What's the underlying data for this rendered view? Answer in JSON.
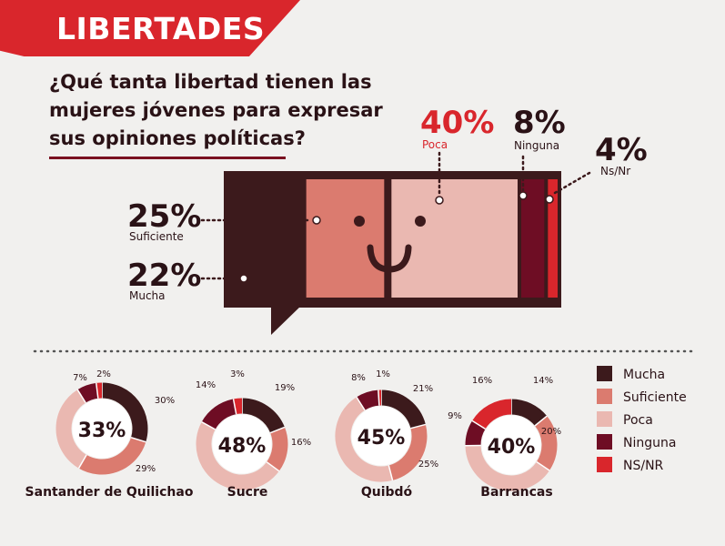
{
  "header": {
    "banner_title": "LIBERTADES"
  },
  "question": {
    "line1": "¿Qué tanta libertad tienen las",
    "line2": "mujeres jóvenes para expresar",
    "line3": "sus opiniones políticas?"
  },
  "colors": {
    "mucha": "#3c1a1c",
    "suficiente": "#db7b6f",
    "poca": "#eab8b1",
    "ninguna": "#6e0d24",
    "nsnr": "#d9262c",
    "banner": "#d9262c"
  },
  "legend": [
    {
      "label": "Mucha",
      "color": "#3c1a1c"
    },
    {
      "label": "Suficiente",
      "color": "#db7b6f"
    },
    {
      "label": "Poca",
      "color": "#eab8b1"
    },
    {
      "label": "Ninguna",
      "color": "#6e0d24"
    },
    {
      "label": "NS/NR",
      "color": "#d9262c"
    }
  ],
  "chart_data": [
    {
      "type": "bar",
      "categories": [
        "Mucha",
        "Suficiente",
        "Poca",
        "Ninguna",
        "Ns/Nr"
      ],
      "values": [
        22,
        25,
        40,
        8,
        4
      ],
      "labels": [
        "22%",
        "25%",
        "40%",
        "8%",
        "4%"
      ],
      "names": [
        "Mucha",
        "Suficiente",
        "Poca",
        "Ninguna",
        "Ns/Nr"
      ]
    },
    {
      "type": "pie",
      "city": "Santander de Quilichao",
      "center_label": "33%",
      "categories": [
        "Mucha",
        "Suficiente",
        "Poca",
        "Ninguna",
        "NS/NR"
      ],
      "values": [
        30,
        29,
        33,
        7,
        2
      ],
      "labels": [
        "30%",
        "29%",
        "",
        "7%",
        "2%"
      ]
    },
    {
      "type": "pie",
      "city": "Sucre",
      "center_label": "48%",
      "categories": [
        "Mucha",
        "Suficiente",
        "Poca",
        "Ninguna",
        "NS/NR"
      ],
      "values": [
        19,
        16,
        48,
        14,
        3
      ],
      "labels": [
        "19%",
        "16%",
        "",
        "14%",
        "3%"
      ]
    },
    {
      "type": "pie",
      "city": "Quibdó",
      "center_label": "45%",
      "categories": [
        "Mucha",
        "Suficiente",
        "Poca",
        "Ninguna",
        "NS/NR"
      ],
      "values": [
        21,
        25,
        45,
        8,
        1
      ],
      "labels": [
        "21%",
        "25%",
        "",
        "8%",
        "1%"
      ]
    },
    {
      "type": "pie",
      "city": "Barrancas",
      "center_label": "40%",
      "categories": [
        "Mucha",
        "Suficiente",
        "Poca",
        "Ninguna",
        "NS/NR"
      ],
      "values": [
        14,
        20,
        40,
        9,
        16
      ],
      "labels": [
        "14%",
        "20%",
        "",
        "9%",
        "16%"
      ]
    }
  ]
}
